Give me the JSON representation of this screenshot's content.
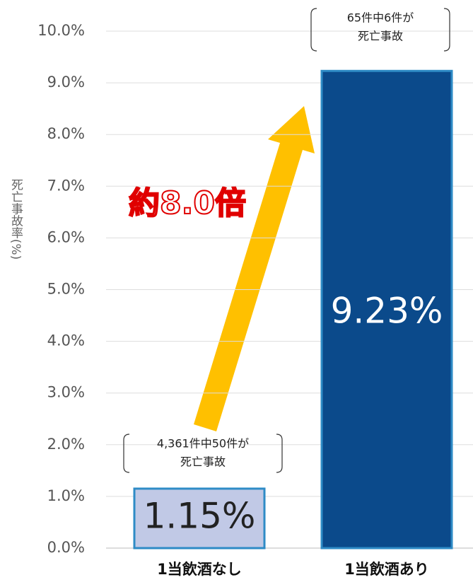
{
  "chart_data": {
    "type": "bar",
    "y_label": "死亡事故率(%)",
    "categories": [
      "1当飲酒なし",
      "1当飲酒あり"
    ],
    "values": [
      1.15,
      9.23
    ],
    "value_labels": [
      "1.15%",
      "9.23%"
    ],
    "colors": [
      "#c1c9e6",
      "#0b4a8b"
    ],
    "ylim": [
      0,
      10
    ],
    "yticks": [
      {
        "value": 0,
        "label": "0.0%"
      },
      {
        "value": 1,
        "label": "1.0%"
      },
      {
        "value": 2,
        "label": "2.0%"
      },
      {
        "value": 3,
        "label": "3.0%"
      },
      {
        "value": 4,
        "label": "4.0%"
      },
      {
        "value": 5,
        "label": "5.0%"
      },
      {
        "value": 6,
        "label": "6.0%"
      },
      {
        "value": 7,
        "label": "7.0%"
      },
      {
        "value": 8,
        "label": "8.0%"
      },
      {
        "value": 9,
        "label": "9.0%"
      },
      {
        "value": 10,
        "label": "10.0%"
      }
    ],
    "grid": true,
    "annotations": [
      [
        "4,361件中50件が",
        "死亡事故"
      ],
      [
        "65件中6件が",
        "死亡事故"
      ]
    ],
    "ratio_label": "約8.0倍"
  }
}
